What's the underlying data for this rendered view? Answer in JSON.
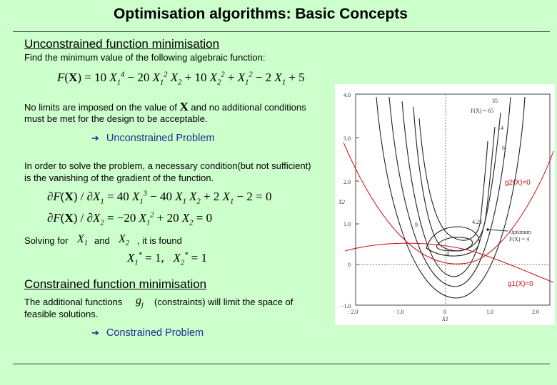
{
  "title": "Optimisation algorithms: Basic Concepts",
  "unconstrained": {
    "heading": "Unconstrained function minimisation",
    "intro": "Find the minimum value of the following algebraic function:",
    "function_equation": "F(X) = 10 X1^4 − 20 X1^2 X2 + 10 X2^2 + X1^2 − 2 X1 + 5",
    "limits_before": "No limits are imposed on the value of",
    "limits_symbol": "X",
    "limits_after": "and no additional conditions",
    "limits_line2": "must be met for the design to be acceptable.",
    "arrow_label": "Unconstrained Problem",
    "gradient_line1": "In order to solve the problem, a necessary condition(but not sufficient)",
    "gradient_line2": "is the vanishing of the gradient of the function.",
    "gradient_eq1": "∂F(X)/∂X1 = 40 X1^3 − 40 X1 X2 + 2 X1 − 2 = 0",
    "gradient_eq2": "∂F(X)/∂X2 = −20 X1^2 + 20 X2 = 0",
    "solving_label": "Solving for",
    "solving_and": "and",
    "solving_found": ", it is found",
    "solution": "X1* = 1,  X2* = 1"
  },
  "constrained": {
    "heading": "Constrained function minimisation",
    "line1_before": "The additional functions",
    "line1_symbol": "gj",
    "line1_after": "(constraints) will limit the space of",
    "line2": "feasible solutions.",
    "arrow_label": "Constrained Problem"
  },
  "figure": {
    "y_axis_label": "X2",
    "x_axis_label": "X1",
    "y_ticks": [
      "4.0",
      "3.0",
      "2.0",
      "1.0",
      "0",
      "−1.0"
    ],
    "x_ticks": [
      "−2.0",
      "−1.0",
      "0",
      "1.0",
      "2.0"
    ],
    "contour_labels": [
      "F(X) = 65",
      "35",
      "14",
      "6",
      "9",
      "4.25",
      "4"
    ],
    "optimum_label": "Optimum",
    "optimum_value": "F(X) = 4",
    "constraint_g2": "g2(X)=0",
    "constraint_g1": "g1(X)=0",
    "constraint_color": "#cc1111"
  }
}
